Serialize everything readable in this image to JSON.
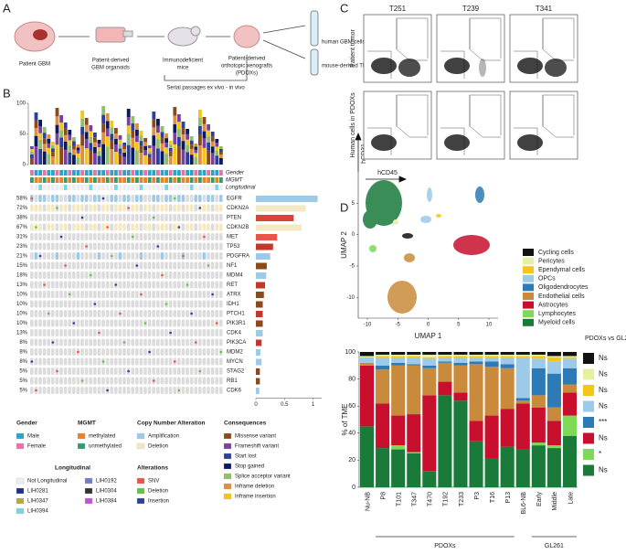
{
  "labels": [
    "A",
    "B",
    "C",
    "D"
  ],
  "panel_a": {
    "steps": [
      [
        "Patient GBM"
      ],
      [
        "Patient-derived",
        "GBM organoids"
      ],
      [
        "Immunodeficient",
        "mice"
      ],
      [
        "Patient-derived",
        "orthotopic xenografts",
        "(PDOXs)"
      ]
    ],
    "outputs": [
      "human GBM cells",
      "mouse-derived TME"
    ],
    "loop": "Serial passages ex vivo - in vivo"
  },
  "panel_b": {
    "top_yticks": [
      0,
      50,
      100
    ],
    "track_labels": [
      "Gender",
      "MGMT",
      "Longitudinal"
    ],
    "percents": [
      "58%",
      "72%",
      "38%",
      "67%",
      "31%",
      "23%",
      "21%",
      "15%",
      "18%",
      "13%",
      "10%",
      "10%",
      "10%",
      "10%",
      "13%",
      "8%",
      "8%",
      "8%",
      "5%",
      "5%",
      "5%"
    ],
    "legends": [
      {
        "title": "Gender",
        "items": [
          {
            "name": "Male",
            "color": "#2aa3c9"
          },
          {
            "name": "Female",
            "color": "#e872a8"
          }
        ]
      },
      {
        "title": "MGMT",
        "items": [
          {
            "name": "methylated",
            "color": "#e8822a"
          },
          {
            "name": "unmethylated",
            "color": "#2f9e6e"
          }
        ]
      },
      {
        "title": "Copy Number Alteration",
        "items": [
          {
            "name": "Amplification",
            "color": "#9ecae9"
          },
          {
            "name": "Deletion",
            "color": "#f2e9c4"
          }
        ]
      },
      {
        "title": "Consequences",
        "items": [
          {
            "name": "Missense variant",
            "color": "#8c4a1c"
          },
          {
            "name": "Frameshift variant",
            "color": "#7b3fa0"
          },
          {
            "name": "Start lost",
            "color": "#2d3f9e"
          },
          {
            "name": "Stop gained",
            "color": "#0a1a5c"
          },
          {
            "name": "Splice acceptor variant",
            "color": "#8fbf6a"
          },
          {
            "name": "Inframe deletion",
            "color": "#e0903a"
          },
          {
            "name": "Inframe insertion",
            "color": "#f5c518"
          }
        ]
      },
      {
        "title": "Longitudinal",
        "items": [
          {
            "name": "Not Longitudinal",
            "color": "#eeeeee"
          },
          {
            "name": "LIH0281",
            "color": "#1c2f8f"
          },
          {
            "name": "LIH0347",
            "color": "#b5a642"
          },
          {
            "name": "LIH0394",
            "color": "#7fd3e0"
          },
          {
            "name": "LIH0192",
            "color": "#6b7fc4"
          },
          {
            "name": "LIH0304",
            "color": "#333333"
          },
          {
            "name": "LIH0384",
            "color": "#c34fd6"
          }
        ]
      },
      {
        "title": "Alterations",
        "items": [
          {
            "name": "SNV",
            "color": "#e8564a"
          },
          {
            "name": "Deletion",
            "color": "#6abf4b"
          },
          {
            "name": "Insertion",
            "color": "#2d3f9e"
          }
        ]
      }
    ]
  },
  "panel_c": {
    "columns": [
      "T251",
      "T239",
      "T341"
    ],
    "rows": [
      "Patient tumor",
      "Human cells in PDOXs"
    ],
    "y_axis": "hCD31",
    "x_axis": "hCD45"
  },
  "chart_data": [
    {
      "type": "hbar",
      "categories": [
        "EGFR",
        "CDKN2A",
        "PTEN",
        "CDKN2B",
        "MET",
        "TP53",
        "PDGFRA",
        "NF1",
        "MDM4",
        "RET",
        "ATRX",
        "IDH1",
        "PTCH1",
        "PIK3R1",
        "CDK4",
        "PIK3CA",
        "MDM2",
        "MYCN",
        "STAG2",
        "RB1",
        "CDK6"
      ],
      "values": [
        1.08,
        0.87,
        0.66,
        0.8,
        0.37,
        0.3,
        0.25,
        0.19,
        0.18,
        0.16,
        0.14,
        0.12,
        0.12,
        0.12,
        0.12,
        0.1,
        0.08,
        0.1,
        0.07,
        0.07,
        0.06
      ],
      "colors": [
        "#9ecae9",
        "#f2e9c4",
        "#d9443a",
        "#f2e9c4",
        "#e8564a",
        "#c0392b",
        "#9ecae9",
        "#8c4a1c",
        "#9ecae9",
        "#c0392b",
        "#8c4a1c",
        "#8c4a1c",
        "#c0392b",
        "#8c4a1c",
        "#9ecae9",
        "#c0392b",
        "#9ecae9",
        "#9ecae9",
        "#8c4a1c",
        "#8c4a1c",
        "#9ecae9"
      ],
      "xlim": [
        0,
        1.15
      ],
      "xticks": [
        0,
        0.5,
        1
      ]
    },
    {
      "type": "scatter",
      "xlabel": "UMAP 1",
      "ylabel": "UMAP 2",
      "xlim": [
        -11.5,
        11.5
      ],
      "ylim": [
        -13.3,
        10
      ],
      "xticks": [
        -10,
        -5,
        0,
        5,
        10
      ],
      "yticks": [
        -10,
        -5,
        0,
        5
      ]
    },
    {
      "type": "stacked_bar",
      "ylabel": "% of TME",
      "categories": [
        "Nu-NB",
        "P8",
        "T101",
        "T347",
        "T470",
        "T192",
        "T233",
        "P3",
        "T16",
        "P13",
        "BL6-NB",
        "Early",
        "Middle",
        "Late"
      ],
      "groups": [
        "PDOXs",
        "GL261"
      ],
      "ylim": [
        0,
        100
      ],
      "yticks": [
        0,
        20,
        40,
        60,
        80,
        100
      ],
      "series": [
        {
          "name": "Cycling cells",
          "color": "#111111",
          "values": [
            3,
            2,
            2,
            2,
            2,
            2,
            2,
            2,
            2,
            2,
            2,
            2,
            3,
            3
          ]
        },
        {
          "name": "Pericytes",
          "color": "#e6f0a0",
          "values": [
            1,
            1,
            1,
            1,
            2,
            1,
            1,
            1,
            1,
            1,
            1,
            1,
            1,
            1
          ]
        },
        {
          "name": "Ependymal cells",
          "color": "#f5c518",
          "values": [
            0,
            1,
            1,
            1,
            1,
            1,
            1,
            1,
            1,
            1,
            1,
            2,
            3,
            1
          ]
        },
        {
          "name": "OPCs",
          "color": "#9ecae9",
          "values": [
            4,
            6,
            4,
            5,
            5,
            3,
            4,
            3,
            3,
            5,
            30,
            7,
            9,
            7
          ]
        },
        {
          "name": "Oligodendrocytes",
          "color": "#2c7bb6",
          "values": [
            0,
            3,
            2,
            1,
            2,
            1,
            2,
            2,
            4,
            3,
            2,
            20,
            25,
            12
          ]
        },
        {
          "name": "Endothelial cells",
          "color": "#c98a3c",
          "values": [
            2,
            25,
            37,
            36,
            20,
            14,
            20,
            42,
            36,
            30,
            2,
            9,
            10,
            6
          ]
        },
        {
          "name": "Astrocytes",
          "color": "#c8102e",
          "values": [
            45,
            33,
            22,
            28,
            56,
            10,
            6,
            15,
            32,
            28,
            34,
            26,
            18,
            17
          ]
        },
        {
          "name": "Lymphocytes",
          "color": "#7ed957",
          "values": [
            0,
            0,
            3,
            1,
            0,
            0,
            0,
            0,
            0,
            0,
            0,
            2,
            2,
            15
          ]
        },
        {
          "name": "Myeloid cells",
          "color": "#1a7a3a",
          "values": [
            45,
            29,
            28,
            25,
            12,
            68,
            64,
            34,
            21,
            30,
            28,
            31,
            29,
            38
          ]
        }
      ],
      "significance": {
        "title": "PDOXs vs GL261",
        "items": [
          {
            "label": "Ns",
            "color": "#111111"
          },
          {
            "label": "Ns",
            "color": "#e6f0a0"
          },
          {
            "label": "Ns",
            "color": "#f5c518"
          },
          {
            "label": "Ns",
            "color": "#9ecae9"
          },
          {
            "label": "***",
            "color": "#2c7bb6"
          },
          {
            "label": "Ns",
            "color": "#c8102e"
          },
          {
            "label": "*",
            "color": "#7ed957"
          },
          {
            "label": "Ns",
            "color": "#1a7a3a"
          }
        ]
      }
    }
  ]
}
